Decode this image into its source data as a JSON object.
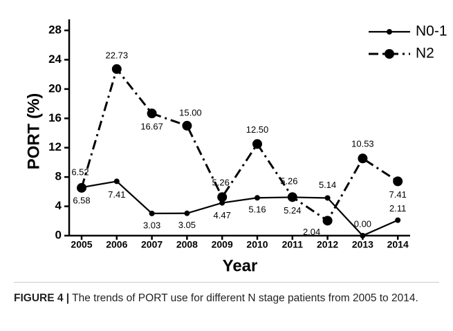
{
  "chart_data": {
    "type": "line",
    "ylabel": "PORT (%)",
    "xlabel": "Year",
    "categories": [
      "2005",
      "2006",
      "2007",
      "2008",
      "2009",
      "2010",
      "2011",
      "2012",
      "2013",
      "2014"
    ],
    "series": [
      {
        "name": "N0-1",
        "color": "#000000",
        "linestyle": "solid",
        "values": [
          6.58,
          7.41,
          3.03,
          3.05,
          4.47,
          5.16,
          5.24,
          5.14,
          0,
          2.11
        ],
        "value_labels": [
          "6.58",
          "7.41",
          "3.03",
          "3.05",
          "4.47",
          "5.16",
          "5.24",
          "5.14",
          "0.00",
          "2.11"
        ]
      },
      {
        "name": "N2",
        "color": "#000000",
        "linestyle": "dashdot",
        "values": [
          6.52,
          22.73,
          16.67,
          15,
          5.26,
          12.5,
          5.26,
          2.04,
          10.53,
          7.41
        ],
        "value_labels": [
          "6.52",
          "22.73",
          "16.67",
          "15.00",
          "5.26",
          "12.50",
          "5.26",
          "2.04",
          "10.53",
          "7.41"
        ]
      }
    ],
    "ylim": [
      0,
      28
    ],
    "yticks": [
      0,
      4,
      8,
      12,
      16,
      20,
      24,
      28
    ],
    "legend": "top-right"
  },
  "caption": {
    "label": "FIGURE 4 |",
    "text": "The trends of PORT use for different N stage patients from 2005 to 2014."
  }
}
